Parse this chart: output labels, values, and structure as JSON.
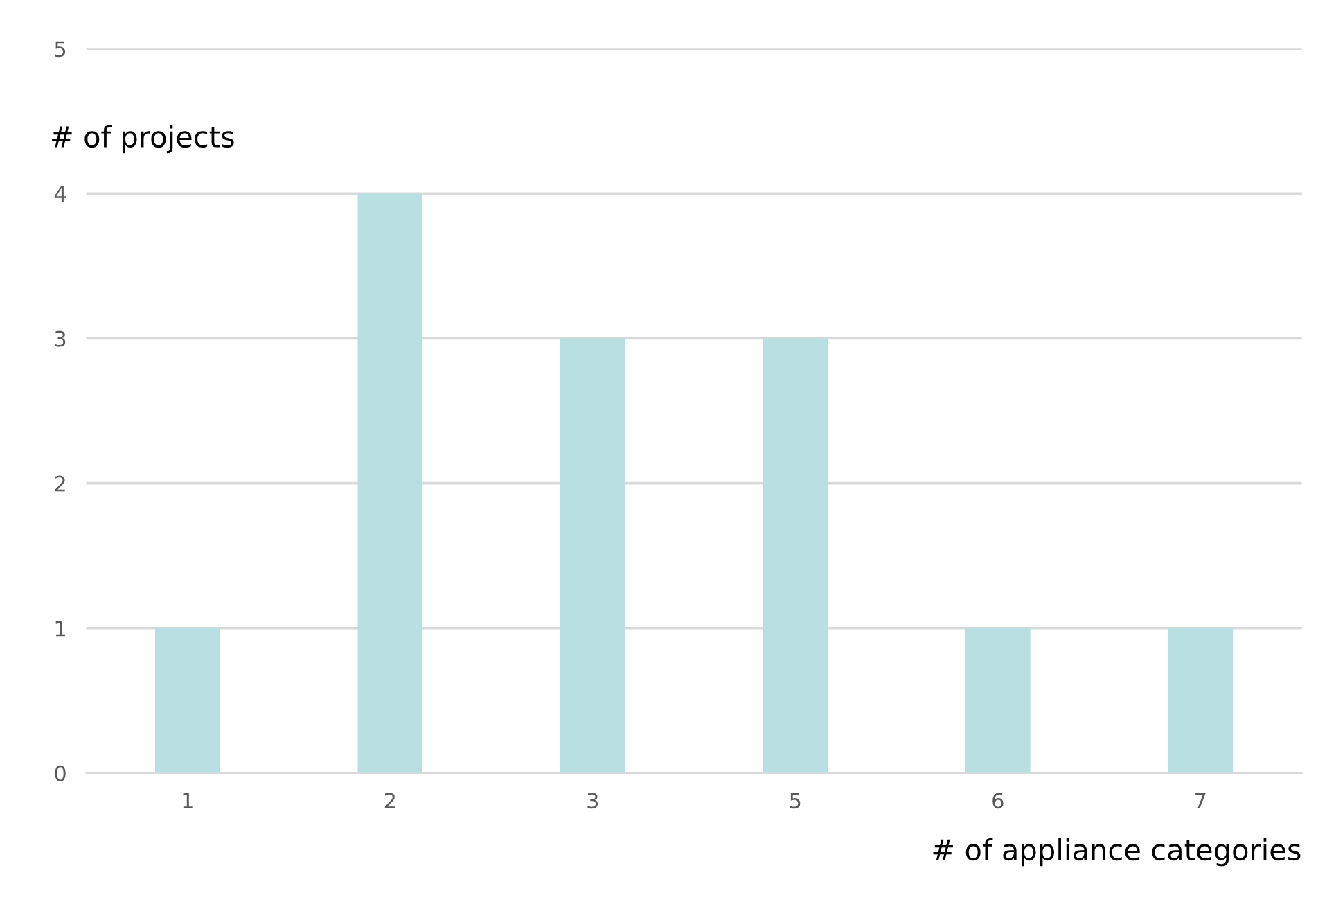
{
  "chart_data": {
    "type": "bar",
    "xlabel": "# of appliance categories",
    "ylabel": "# of projects",
    "categories": [
      "1",
      "2",
      "3",
      "5",
      "6",
      "7"
    ],
    "values": [
      1,
      4,
      3,
      3,
      1,
      1
    ],
    "color": "#b8dfe2",
    "ylim": [
      0,
      5
    ],
    "yticks": [
      0,
      1,
      2,
      3,
      4,
      5
    ],
    "grid": "y",
    "legend": false
  }
}
